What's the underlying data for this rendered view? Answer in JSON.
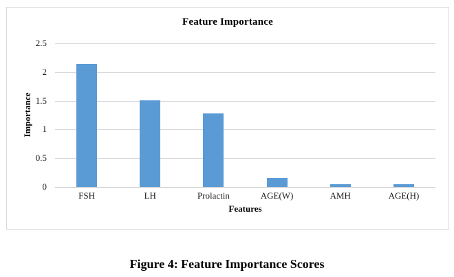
{
  "chart_data": {
    "type": "bar",
    "title": "Feature Importance",
    "xlabel": "Features",
    "ylabel": "Importance",
    "categories": [
      "FSH",
      "LH",
      "Prolactin",
      "AGE(W)",
      "AMH",
      "AGE(H)"
    ],
    "values": [
      2.14,
      1.51,
      1.28,
      0.16,
      0.05,
      0.05
    ],
    "ylim": [
      0,
      2.5
    ],
    "ytick_labels": [
      "2.5",
      "2",
      "1.5",
      "1",
      "0.5",
      "0"
    ],
    "grid": "on",
    "legend": "none",
    "bar_color": "#5b9bd5",
    "gridline_color": "#d9d9d9",
    "axis_line_color": "#cccccc",
    "frame_border_color": "#d9d9d9"
  },
  "figure": {
    "caption": "Figure 4: Feature Importance Scores"
  }
}
